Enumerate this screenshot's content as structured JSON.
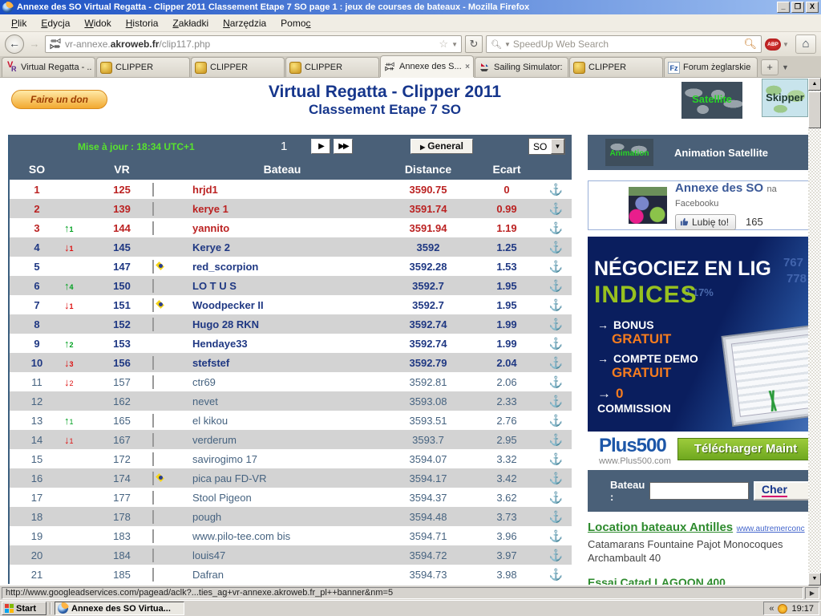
{
  "window": {
    "title": "Annexe des SO Virtual Regatta - Clipper 2011 Classement Etape 7 SO page 1 : jeux de courses de bateaux - Mozilla Firefox",
    "minimize": "_",
    "restore": "❐",
    "close": "X"
  },
  "menu": {
    "items": [
      {
        "pre": "",
        "key": "P",
        "post": "lik"
      },
      {
        "pre": "",
        "key": "E",
        "post": "dycja"
      },
      {
        "pre": "",
        "key": "W",
        "post": "idok"
      },
      {
        "pre": "",
        "key": "H",
        "post": "istoria"
      },
      {
        "pre": "",
        "key": "Z",
        "post": "akładki"
      },
      {
        "pre": "",
        "key": "N",
        "post": "arzędzia"
      },
      {
        "pre": "Pomo",
        "key": "c",
        "post": ""
      }
    ]
  },
  "toolbar": {
    "url_prefix": "vr-annexe.",
    "url_host": "akroweb.fr",
    "url_path": "/clip117.php",
    "search_placeholder": "SpeedUp Web Search",
    "abp_label": "ABP",
    "home_glyph": "⌂",
    "back_glyph": "←",
    "forward_glyph": "→",
    "reload_glyph": "↻",
    "star_glyph": "☆"
  },
  "tabs": [
    {
      "label": "Virtual Regatta - ...",
      "icon": "vr",
      "active": false
    },
    {
      "label": "CLIPPER",
      "icon": "clipper",
      "active": false
    },
    {
      "label": "CLIPPER",
      "icon": "clipper",
      "active": false
    },
    {
      "label": "CLIPPER",
      "icon": "clipper",
      "active": false
    },
    {
      "label": "Annexe des S...",
      "icon": "fishbone",
      "active": true,
      "close": "x"
    },
    {
      "label": "Sailing Simulator: ...",
      "icon": "sailing",
      "active": false
    },
    {
      "label": "CLIPPER",
      "icon": "clipper",
      "active": false
    },
    {
      "label": "Forum żeglarskie ...",
      "icon": "fz",
      "active": false
    }
  ],
  "tabbar": {
    "new_tab": "+",
    "list_tabs": "▼"
  },
  "page": {
    "donate_label": "Faire un don",
    "title_line1": "Virtual Regatta - Clipper 2011",
    "title_line2": "Classement Etape 7 SO",
    "thumb_satellite": "Satellite",
    "thumb_skipper": "Skipper"
  },
  "table": {
    "updated": "Mise à jour : 18:34 UTC+1",
    "page_number": "1",
    "next_glyph": "▶",
    "last_glyph": "▶▶",
    "general_label": "General",
    "selector_value": "SO",
    "columns": {
      "c1": "SO",
      "c2": "VR",
      "c3": "Bateau",
      "c4": "Distance",
      "c5": "Ecart"
    },
    "anchor_glyph": "⚓",
    "rows": [
      {
        "rank": "1",
        "move_dir": "",
        "move_n": "",
        "vr": "125",
        "flag": "fr",
        "name": "hrjd1",
        "distance": "3590.75",
        "ecart": "0",
        "style": "red"
      },
      {
        "rank": "2",
        "move_dir": "",
        "move_n": "",
        "vr": "139",
        "flag": "fr",
        "name": "kerye 1",
        "distance": "3591.74",
        "ecart": "0.99",
        "style": "red"
      },
      {
        "rank": "3",
        "move_dir": "up",
        "move_n": "1",
        "vr": "144",
        "flag": "fr",
        "name": "yannito",
        "distance": "3591.94",
        "ecart": "1.19",
        "style": "red"
      },
      {
        "rank": "4",
        "move_dir": "down",
        "move_n": "1",
        "vr": "145",
        "flag": "",
        "name": "Kerye 2",
        "distance": "3592",
        "ecart": "1.25",
        "style": "bold"
      },
      {
        "rank": "5",
        "move_dir": "",
        "move_n": "",
        "vr": "147",
        "flag": "br",
        "name": "red_scorpion",
        "distance": "3592.28",
        "ecart": "1.53",
        "style": "bold"
      },
      {
        "rank": "6",
        "move_dir": "up",
        "move_n": "4",
        "vr": "150",
        "flag": "fr",
        "name": "LO T U S",
        "distance": "3592.7",
        "ecart": "1.95",
        "style": "bold"
      },
      {
        "rank": "7",
        "move_dir": "down",
        "move_n": "1",
        "vr": "151",
        "flag": "br",
        "name": "Woodpecker II",
        "distance": "3592.7",
        "ecart": "1.95",
        "style": "bold"
      },
      {
        "rank": "8",
        "move_dir": "",
        "move_n": "",
        "vr": "152",
        "flag": "fr",
        "name": "Hugo 28 RKN",
        "distance": "3592.74",
        "ecart": "1.99",
        "style": "bold"
      },
      {
        "rank": "9",
        "move_dir": "up",
        "move_n": "2",
        "vr": "153",
        "flag": "",
        "name": "Hendaye33",
        "distance": "3592.74",
        "ecart": "1.99",
        "style": "bold"
      },
      {
        "rank": "10",
        "move_dir": "down",
        "move_n": "3",
        "vr": "156",
        "flag": "fr",
        "name": "stefstef",
        "distance": "3592.79",
        "ecart": "2.04",
        "style": "bold"
      },
      {
        "rank": "11",
        "move_dir": "down",
        "move_n": "2",
        "vr": "157",
        "flag": "fr",
        "name": "ctr69",
        "distance": "3592.81",
        "ecart": "2.06",
        "style": "plain"
      },
      {
        "rank": "12",
        "move_dir": "",
        "move_n": "",
        "vr": "162",
        "flag": "",
        "name": "nevet",
        "distance": "3593.08",
        "ecart": "2.33",
        "style": "plain"
      },
      {
        "rank": "13",
        "move_dir": "up",
        "move_n": "1",
        "vr": "165",
        "flag": "fr",
        "name": "el kikou",
        "distance": "3593.51",
        "ecart": "2.76",
        "style": "plain"
      },
      {
        "rank": "14",
        "move_dir": "down",
        "move_n": "1",
        "vr": "167",
        "flag": "fr",
        "name": "verderum",
        "distance": "3593.7",
        "ecart": "2.95",
        "style": "plain"
      },
      {
        "rank": "15",
        "move_dir": "",
        "move_n": "",
        "vr": "172",
        "flag": "fr",
        "name": "savirogimo 17",
        "distance": "3594.07",
        "ecart": "3.32",
        "style": "plain"
      },
      {
        "rank": "16",
        "move_dir": "",
        "move_n": "",
        "vr": "174",
        "flag": "br",
        "name": "pica pau FD-VR",
        "distance": "3594.17",
        "ecart": "3.42",
        "style": "plain"
      },
      {
        "rank": "17",
        "move_dir": "",
        "move_n": "",
        "vr": "177",
        "flag": "fr",
        "name": "Stool Pigeon",
        "distance": "3594.37",
        "ecart": "3.62",
        "style": "plain"
      },
      {
        "rank": "18",
        "move_dir": "",
        "move_n": "",
        "vr": "178",
        "flag": "pl",
        "name": "pough",
        "distance": "3594.48",
        "ecart": "3.73",
        "style": "plain"
      },
      {
        "rank": "19",
        "move_dir": "",
        "move_n": "",
        "vr": "183",
        "flag": "fr",
        "name": "www.pilo-tee.com bis",
        "distance": "3594.71",
        "ecart": "3.96",
        "style": "plain"
      },
      {
        "rank": "20",
        "move_dir": "",
        "move_n": "",
        "vr": "184",
        "flag": "fr",
        "name": "louis47",
        "distance": "3594.72",
        "ecart": "3.97",
        "style": "plain"
      },
      {
        "rank": "21",
        "move_dir": "",
        "move_n": "",
        "vr": "185",
        "flag": "fr",
        "name": "Dafran",
        "distance": "3594.73",
        "ecart": "3.98",
        "style": "plain"
      }
    ]
  },
  "sidebar": {
    "animation": {
      "thumb_label": "Animation",
      "title": "Animation Satellite"
    },
    "facebook": {
      "title": "Annexe des SO",
      "subtitle": "na Facebooku",
      "like_label": "Lubię to!",
      "like_count": "165"
    },
    "ad": {
      "line1": "NÉGOCIEZ EN LIG",
      "line2": "INDICES",
      "items": [
        {
          "a": "BONUS",
          "b": "GRATUIT"
        },
        {
          "a": "COMPTE DEMO",
          "b": "GRATUIT"
        },
        {
          "a": "0",
          "b": "COMMISSION"
        }
      ],
      "bg_numbers": {
        "n1": "767",
        "n2": "778",
        "n3": "0.17%"
      },
      "logo": "Plus500",
      "logo_url": "www.Plus500.com",
      "cta": "Télécharger Maint"
    },
    "boat_search": {
      "label": "Bateau :",
      "button": "Cher"
    },
    "links": {
      "title": "Location bateaux Antilles",
      "title_url": "www.autremerconc",
      "desc": "Catamarans Fountaine Pajot Monocoques Archambault 40",
      "partial": "Essai Catad LAGOON 400"
    }
  },
  "statusbar": {
    "url": "http://www.googleadservices.com/pagead/aclk?...ties_ag+vr-annexe.akroweb.fr_pl++banner&nm=5",
    "right_glyph": "▶"
  },
  "taskbar": {
    "start": "Start",
    "task": "Annexe des SO Virtua...",
    "chevron": "«",
    "time": "19:17"
  },
  "colors": {
    "table_header_bg": "#4A6078",
    "row_alt": "#D3D3D3",
    "rank_red": "#BB2222",
    "rank_navy": "#1F3883",
    "rank_slate": "#466380",
    "update_green": "#58E32E",
    "ad_green": "#97C11F",
    "ad_orange": "#F57C1F",
    "title_blue": "#16368C"
  }
}
